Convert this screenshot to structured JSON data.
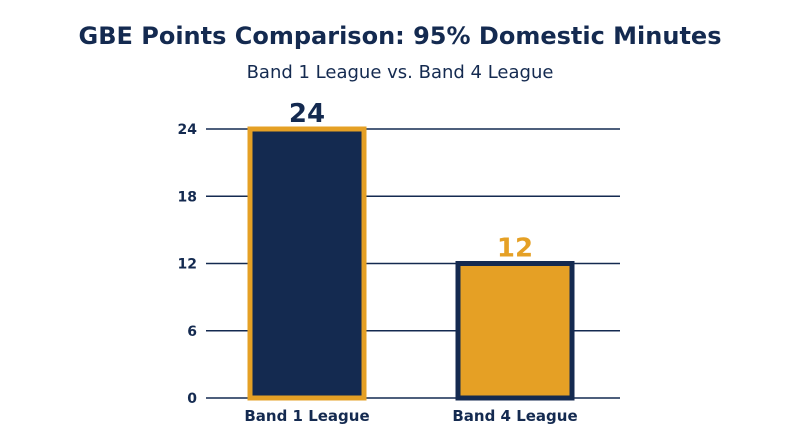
{
  "chart_data": {
    "type": "bar",
    "title": "GBE Points Comparison: 95% Domestic Minutes",
    "subtitle": "Band 1 League vs. Band 4 League",
    "categories": [
      "Band 1 League",
      "Band 4 League"
    ],
    "values": [
      24,
      12
    ],
    "data_labels": [
      "24",
      "12"
    ],
    "yticks": [
      "0",
      "6",
      "12",
      "18",
      "24"
    ],
    "ylim": [
      0,
      24
    ],
    "grid": true,
    "colors": {
      "navy": "#142a50",
      "gold": "#e5a025"
    },
    "bar_fills": [
      "#142a50",
      "#e5a025"
    ],
    "bar_outlines": [
      "#e5a025",
      "#142a50"
    ],
    "label_colors": [
      "#142a50",
      "#e5a025"
    ]
  }
}
